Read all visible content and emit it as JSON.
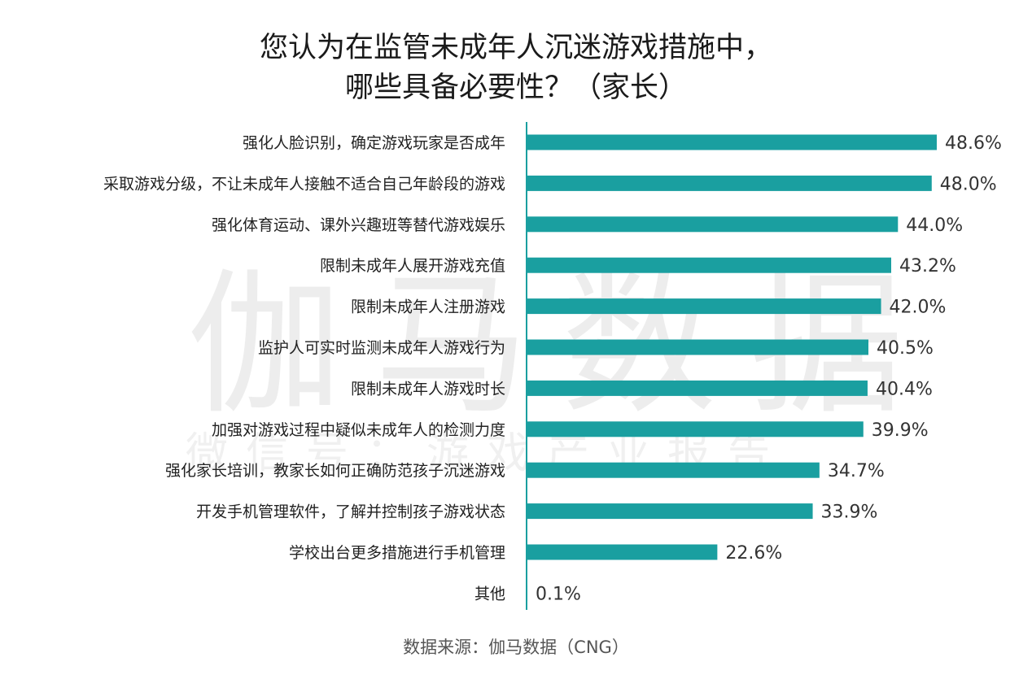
{
  "title_line1": "您认为在监管未成年人沉迷游戏措施中，",
  "title_line2": "哪些具备必要性？（家长）",
  "watermark_main": "伽马数据",
  "watermark_sub": "微信号：游戏产业报告",
  "source": "数据来源：伽马数据（CNG）",
  "colors": {
    "bar": "#1a9fa0",
    "axis": "#1a9fa0"
  },
  "chart_data": {
    "type": "bar",
    "orientation": "horizontal",
    "categories": [
      "强化人脸识别，确定游戏玩家是否成年",
      "采取游戏分级，不让未成年人接触不适合自己年龄段的游戏",
      "强化体育运动、课外兴趣班等替代游戏娱乐",
      "限制未成年人展开游戏充值",
      "限制未成年人注册游戏",
      "监护人可实时监测未成年人游戏行为",
      "限制未成年人游戏时长",
      "加强对游戏过程中疑似未成年人的检测力度",
      "强化家长培训，教家长如何正确防范孩子沉迷游戏",
      "开发手机管理软件，了解并控制孩子游戏状态",
      "学校出台更多措施进行手机管理",
      "其他"
    ],
    "values": [
      48.6,
      48.0,
      44.0,
      43.2,
      42.0,
      40.5,
      40.4,
      39.9,
      34.7,
      33.9,
      22.6,
      0.1
    ],
    "value_labels": [
      "48.6%",
      "48.0%",
      "44.0%",
      "43.2%",
      "42.0%",
      "40.5%",
      "40.4%",
      "39.9%",
      "34.7%",
      "33.9%",
      "22.6%",
      "0.1%"
    ],
    "xlim": [
      0,
      48.6
    ],
    "grid": false
  }
}
